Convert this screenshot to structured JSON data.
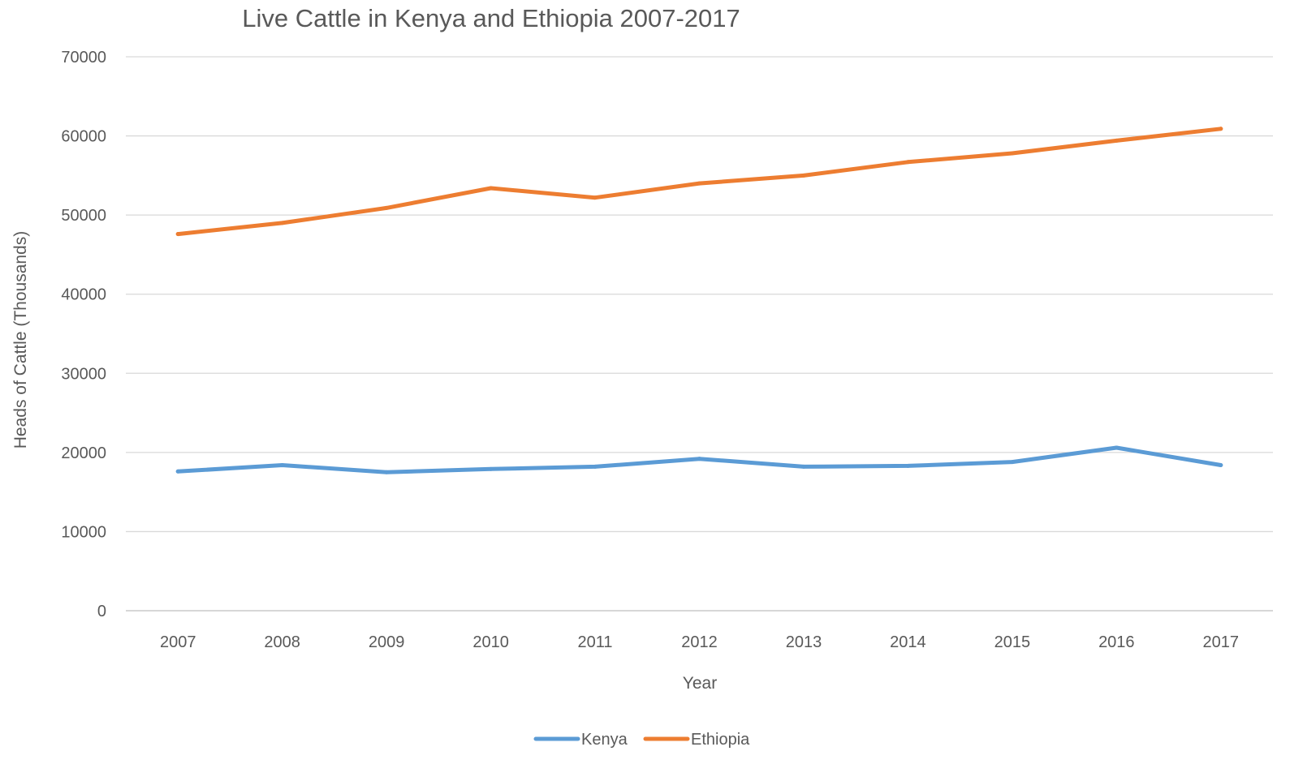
{
  "chart_data": {
    "type": "line",
    "title": "Live Cattle in Kenya and Ethiopia 2007-2017",
    "xlabel": "Year",
    "ylabel": "Heads of Cattle  (Thousands)",
    "categories": [
      "2007",
      "2008",
      "2009",
      "2010",
      "2011",
      "2012",
      "2013",
      "2014",
      "2015",
      "2016",
      "2017"
    ],
    "ylim": [
      0,
      70000
    ],
    "yticks": [
      "0",
      "10000",
      "20000",
      "30000",
      "40000",
      "50000",
      "60000",
      "70000"
    ],
    "grid": true,
    "legend_position": "bottom",
    "series": [
      {
        "name": "Kenya",
        "color": "#5b9bd5",
        "values": [
          17600,
          18400,
          17500,
          17900,
          18200,
          19200,
          18200,
          18300,
          18800,
          20600,
          18400
        ]
      },
      {
        "name": "Ethiopia",
        "color": "#ed7d31",
        "values": [
          47600,
          49000,
          50900,
          53400,
          52200,
          54000,
          55000,
          56700,
          57800,
          59400,
          60900
        ]
      }
    ]
  }
}
